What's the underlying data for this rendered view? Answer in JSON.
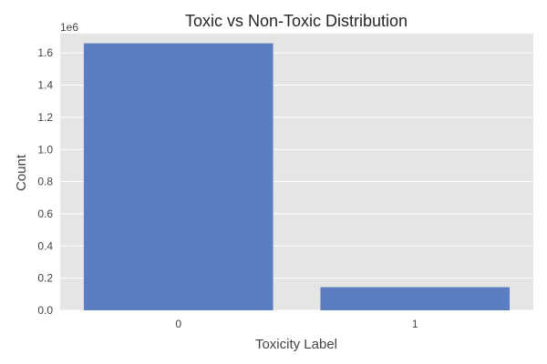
{
  "chart_data": {
    "type": "bar",
    "title": "Toxic vs Non-Toxic Distribution",
    "xlabel": "Toxicity Label",
    "ylabel": "Count",
    "offset_text": "1e6",
    "categories": [
      "0",
      "1"
    ],
    "values": [
      1660000,
      144000
    ],
    "ylim": [
      0,
      1720000
    ],
    "yticks": [
      0,
      200000,
      400000,
      600000,
      800000,
      1000000,
      1200000,
      1400000,
      1600000
    ],
    "ytick_labels": [
      "0.0",
      "0.2",
      "0.4",
      "0.6",
      "0.8",
      "1.0",
      "1.2",
      "1.4",
      "1.6"
    ],
    "grid": true,
    "colors": {
      "bar": "#5b7ec2",
      "plot_bg": "#e5e5e5",
      "grid": "#ffffff"
    }
  }
}
